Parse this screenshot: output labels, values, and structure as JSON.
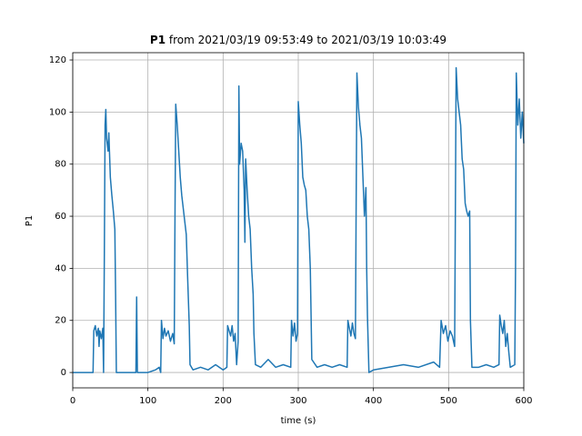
{
  "chart_data": {
    "type": "line",
    "title_prefix": "P1",
    "title": "from 2021/03/19 09:53:49 to 2021/03/19 10:03:49",
    "x_label": "time (s)",
    "y_label": "P1",
    "xlim": [
      0,
      600
    ],
    "xticks": [
      0,
      100,
      200,
      300,
      400,
      500,
      600
    ],
    "ylim": [
      -5.9,
      122.8
    ],
    "yticks": [
      0,
      20,
      40,
      60,
      80,
      100,
      120
    ],
    "grid": true,
    "x": [
      0,
      27,
      28,
      30,
      32,
      34,
      35,
      36,
      38,
      40,
      41,
      42,
      43,
      44,
      45,
      47,
      48,
      50,
      52,
      54,
      56,
      57,
      58,
      84,
      85,
      86,
      100,
      110,
      115,
      117,
      118,
      120,
      122,
      124,
      127,
      130,
      133,
      135,
      136,
      137,
      139,
      141,
      143,
      145,
      147,
      149,
      151,
      153,
      155,
      156,
      160,
      170,
      180,
      190,
      200,
      205,
      206,
      208,
      210,
      212,
      214,
      216,
      218,
      220,
      221,
      222,
      224,
      226,
      228,
      229,
      230,
      232,
      234,
      236,
      238,
      240,
      241,
      243,
      250,
      260,
      270,
      280,
      290,
      291,
      293,
      295,
      297,
      299,
      300,
      302,
      304,
      306,
      308,
      310,
      312,
      314,
      316,
      318,
      325,
      335,
      345,
      355,
      365,
      366,
      368,
      370,
      372,
      374,
      376,
      377,
      378,
      380,
      382,
      384,
      386,
      388,
      390,
      391,
      392,
      394,
      400,
      420,
      440,
      460,
      480,
      488,
      490,
      493,
      496,
      499,
      502,
      505,
      508,
      510,
      512,
      514,
      516,
      518,
      520,
      522,
      524,
      526,
      528,
      529,
      531,
      540,
      550,
      560,
      567,
      568,
      570,
      572,
      574,
      576,
      578,
      580,
      582,
      588,
      589,
      590,
      592,
      594,
      596,
      598,
      600
    ],
    "series": [
      {
        "name": "P1",
        "color": "#1f77b4",
        "values": [
          0,
          0,
          16,
          18,
          14,
          17,
          10,
          16,
          13,
          17,
          0,
          44,
          95,
          101,
          90,
          85,
          92,
          75,
          68,
          62,
          55,
          30,
          0,
          0,
          29,
          0,
          0,
          1,
          2,
          0,
          20,
          13,
          17,
          14,
          16,
          12,
          15,
          11,
          60,
          103,
          95,
          85,
          75,
          68,
          63,
          58,
          53,
          35,
          18,
          3,
          1,
          2,
          1,
          3,
          1,
          2,
          18,
          16,
          14,
          18,
          12,
          15,
          3,
          12,
          110,
          80,
          88,
          85,
          70,
          50,
          82,
          70,
          60,
          55,
          40,
          30,
          15,
          3,
          2,
          5,
          2,
          3,
          2,
          20,
          14,
          19,
          12,
          15,
          104,
          95,
          88,
          75,
          72,
          70,
          60,
          55,
          40,
          5,
          2,
          3,
          2,
          3,
          2,
          20,
          17,
          14,
          19,
          15,
          13,
          65,
          115,
          102,
          95,
          90,
          75,
          60,
          71,
          40,
          22,
          0,
          1,
          2,
          3,
          2,
          4,
          2,
          20,
          15,
          18,
          12,
          16,
          14,
          10,
          117,
          105,
          100,
          95,
          82,
          78,
          65,
          62,
          60,
          62,
          20,
          2,
          2,
          3,
          2,
          3,
          22,
          18,
          15,
          20,
          10,
          15,
          8,
          2,
          3,
          40,
          115,
          95,
          105,
          90,
          100,
          88
        ]
      }
    ]
  }
}
